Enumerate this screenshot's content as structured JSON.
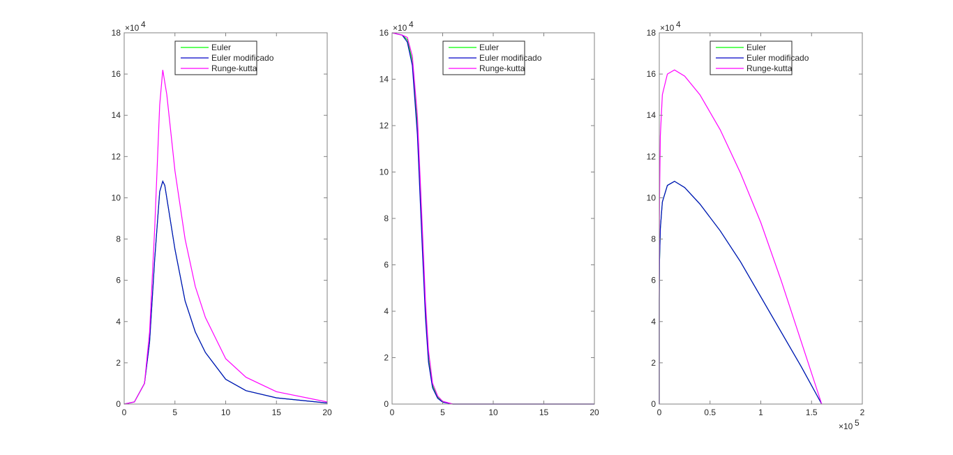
{
  "colors": {
    "Euler": "#00ff00",
    "Euler modificado": "#0000c8",
    "Runge-kutta": "#ff00ff",
    "axis": "#808080"
  },
  "chart_data": [
    {
      "type": "line",
      "xlim": [
        0,
        20
      ],
      "ylim": [
        0,
        18
      ],
      "xticks": [
        "0",
        "5",
        "10",
        "15",
        "20"
      ],
      "xtick_values": [
        0,
        5,
        10,
        15,
        20
      ],
      "yticks": [
        "0",
        "2",
        "4",
        "6",
        "8",
        "10",
        "12",
        "14",
        "16",
        "18"
      ],
      "ytick_values": [
        0,
        2,
        4,
        6,
        8,
        10,
        12,
        14,
        16,
        18
      ],
      "y_exponent": "4",
      "x_exponent": "",
      "legend": [
        "Euler",
        "Euler modificado",
        "Runge-kutta"
      ],
      "legend_position": "top",
      "series": [
        {
          "name": "Euler",
          "x": [
            0,
            1,
            2,
            2.5,
            3,
            3.5,
            3.8,
            4,
            5,
            6,
            7,
            8,
            10,
            12,
            15,
            20
          ],
          "y": [
            0,
            0.1,
            1,
            3,
            7,
            10.3,
            10.8,
            10.6,
            7.5,
            5,
            3.5,
            2.5,
            1.2,
            0.65,
            0.3,
            0.05
          ]
        },
        {
          "name": "Euler modificado",
          "x": [
            0,
            1,
            2,
            2.5,
            3,
            3.5,
            3.8,
            4,
            5,
            6,
            7,
            8,
            10,
            12,
            15,
            20
          ],
          "y": [
            0,
            0.1,
            1,
            3,
            7,
            10.3,
            10.8,
            10.6,
            7.5,
            5,
            3.5,
            2.5,
            1.2,
            0.65,
            0.3,
            0.05
          ]
        },
        {
          "name": "Runge-kutta",
          "x": [
            0,
            1,
            2,
            2.5,
            3,
            3.5,
            3.8,
            4.2,
            5,
            6,
            7,
            8,
            10,
            12,
            15,
            20
          ],
          "y": [
            0,
            0.1,
            1,
            3.5,
            8.5,
            14.5,
            16.2,
            15,
            11.3,
            8,
            5.7,
            4.2,
            2.2,
            1.3,
            0.6,
            0.1
          ]
        }
      ]
    },
    {
      "type": "line",
      "xlim": [
        0,
        20
      ],
      "ylim": [
        0,
        16
      ],
      "xticks": [
        "0",
        "5",
        "10",
        "15",
        "20"
      ],
      "xtick_values": [
        0,
        5,
        10,
        15,
        20
      ],
      "yticks": [
        "0",
        "2",
        "4",
        "6",
        "8",
        "10",
        "12",
        "14",
        "16"
      ],
      "ytick_values": [
        0,
        2,
        4,
        6,
        8,
        10,
        12,
        14,
        16
      ],
      "y_exponent": "4",
      "x_exponent": "",
      "legend": [
        "Euler",
        "Euler modificado",
        "Runge-kutta"
      ],
      "legend_position": "top",
      "series": [
        {
          "name": "Euler",
          "x": [
            0,
            1,
            1.5,
            2,
            2.5,
            2.8,
            3,
            3.3,
            3.6,
            4,
            4.5,
            5,
            6,
            20
          ],
          "y": [
            16,
            15.9,
            15.7,
            14.8,
            12,
            9,
            7,
            4,
            2,
            0.8,
            0.3,
            0.1,
            0,
            0
          ]
        },
        {
          "name": "Euler modificado",
          "x": [
            0,
            1,
            1.5,
            2,
            2.5,
            2.8,
            3,
            3.3,
            3.6,
            4,
            4.5,
            5,
            6,
            20
          ],
          "y": [
            16,
            15.9,
            15.6,
            14.6,
            11.6,
            8.6,
            6.6,
            3.7,
            1.8,
            0.7,
            0.25,
            0.08,
            0,
            0
          ]
        },
        {
          "name": "Runge-kutta",
          "x": [
            0,
            1,
            1.5,
            2,
            2.5,
            2.8,
            3,
            3.3,
            3.6,
            4,
            4.5,
            5,
            6,
            20
          ],
          "y": [
            16,
            15.9,
            15.8,
            15,
            12.4,
            9.5,
            7.5,
            4.4,
            2.3,
            0.9,
            0.35,
            0.12,
            0,
            0
          ]
        }
      ]
    },
    {
      "type": "line",
      "xlim": [
        0,
        2
      ],
      "ylim": [
        0,
        18
      ],
      "xticks": [
        "0",
        "0.5",
        "1",
        "1.5",
        "2"
      ],
      "xtick_values": [
        0,
        0.5,
        1,
        1.5,
        2
      ],
      "yticks": [
        "0",
        "2",
        "4",
        "6",
        "8",
        "10",
        "12",
        "14",
        "16",
        "18"
      ],
      "ytick_values": [
        0,
        2,
        4,
        6,
        8,
        10,
        12,
        14,
        16,
        18
      ],
      "y_exponent": "4",
      "x_exponent": "5",
      "legend": [
        "Euler",
        "Euler modificado",
        "Runge-kutta"
      ],
      "legend_position": "top",
      "series": [
        {
          "name": "Euler",
          "x": [
            1.6,
            1.4,
            1.2,
            1.0,
            0.8,
            0.6,
            0.4,
            0.25,
            0.15,
            0.08,
            0.03,
            0.01,
            0.003,
            0,
            0
          ],
          "y": [
            0,
            1.8,
            3.5,
            5.2,
            6.9,
            8.4,
            9.7,
            10.5,
            10.8,
            10.6,
            9.8,
            8.5,
            7,
            5,
            0
          ]
        },
        {
          "name": "Euler modificado",
          "x": [
            1.6,
            1.4,
            1.2,
            1.0,
            0.8,
            0.6,
            0.4,
            0.25,
            0.15,
            0.08,
            0.03,
            0.01,
            0.003,
            0,
            0
          ],
          "y": [
            0,
            1.8,
            3.5,
            5.2,
            6.9,
            8.4,
            9.7,
            10.5,
            10.8,
            10.6,
            9.8,
            8.5,
            7,
            5,
            0
          ]
        },
        {
          "name": "Runge-kutta",
          "x": [
            1.6,
            1.4,
            1.2,
            1.0,
            0.8,
            0.6,
            0.4,
            0.25,
            0.15,
            0.08,
            0.03,
            0.01,
            0.003,
            0,
            0
          ],
          "y": [
            0,
            3,
            6,
            8.8,
            11.2,
            13.3,
            15,
            15.9,
            16.2,
            16,
            15,
            13,
            10,
            7,
            0
          ]
        }
      ]
    }
  ]
}
